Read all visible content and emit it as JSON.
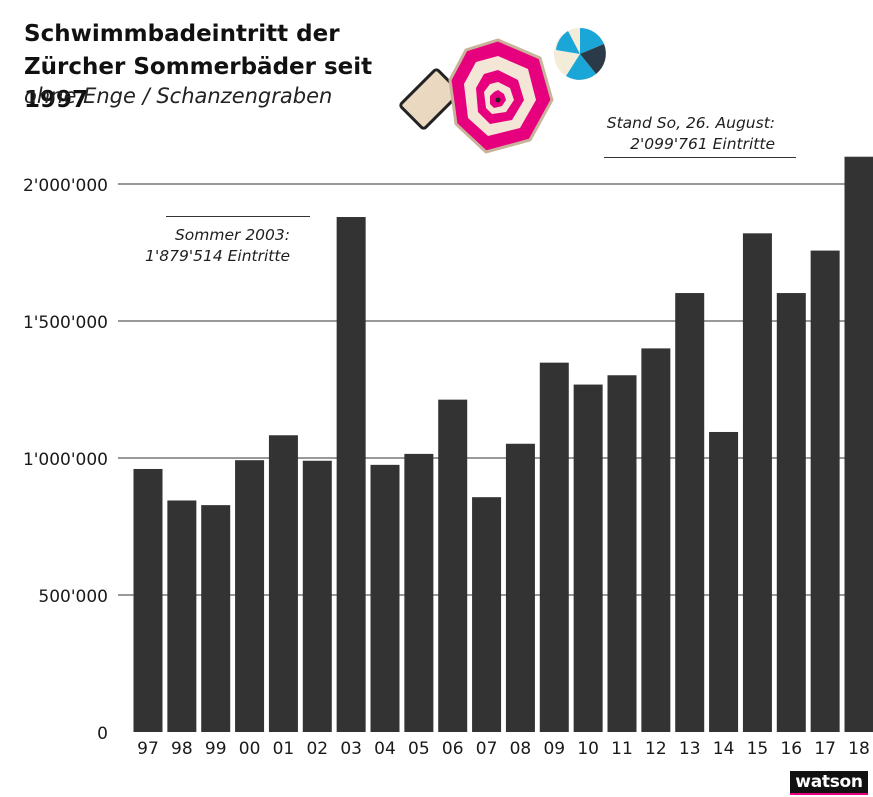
{
  "chart_data": {
    "type": "bar",
    "title": "Schwimmbadeintritt der Zürcher Sommerbäder seit 1997",
    "subtitle": "ohne Enge / Schanzengraben",
    "categories": [
      "97",
      "98",
      "99",
      "00",
      "01",
      "02",
      "03",
      "04",
      "05",
      "06",
      "07",
      "08",
      "09",
      "10",
      "11",
      "12",
      "13",
      "14",
      "15",
      "16",
      "17",
      "18"
    ],
    "values": [
      960000,
      845000,
      828000,
      992000,
      1083000,
      990000,
      1879514,
      975000,
      1015000,
      1213000,
      857000,
      1052000,
      1348000,
      1268000,
      1302000,
      1400000,
      1602000,
      1095000,
      1820000,
      1602000,
      1757000,
      2099761
    ],
    "ylim": [
      0,
      2000000
    ],
    "yticks": [
      0,
      500000,
      1000000,
      1500000,
      2000000
    ],
    "ytick_labels": [
      "0",
      "500'000",
      "1'000'000",
      "1'500'000",
      "2'000'000"
    ],
    "grid": true,
    "bar_color": "#333333",
    "annotations": {
      "top_line1": "Stand So, 26. August:",
      "top_line2": "2'099'761 Eintritte",
      "y2003_line1": "Sommer 2003:",
      "y2003_line2": "1'879'514 Eintritte"
    }
  },
  "brand": {
    "logo": "watson",
    "accent": "#e6007e"
  },
  "decorations": [
    "parasol-icon",
    "beach-ball-icon"
  ]
}
